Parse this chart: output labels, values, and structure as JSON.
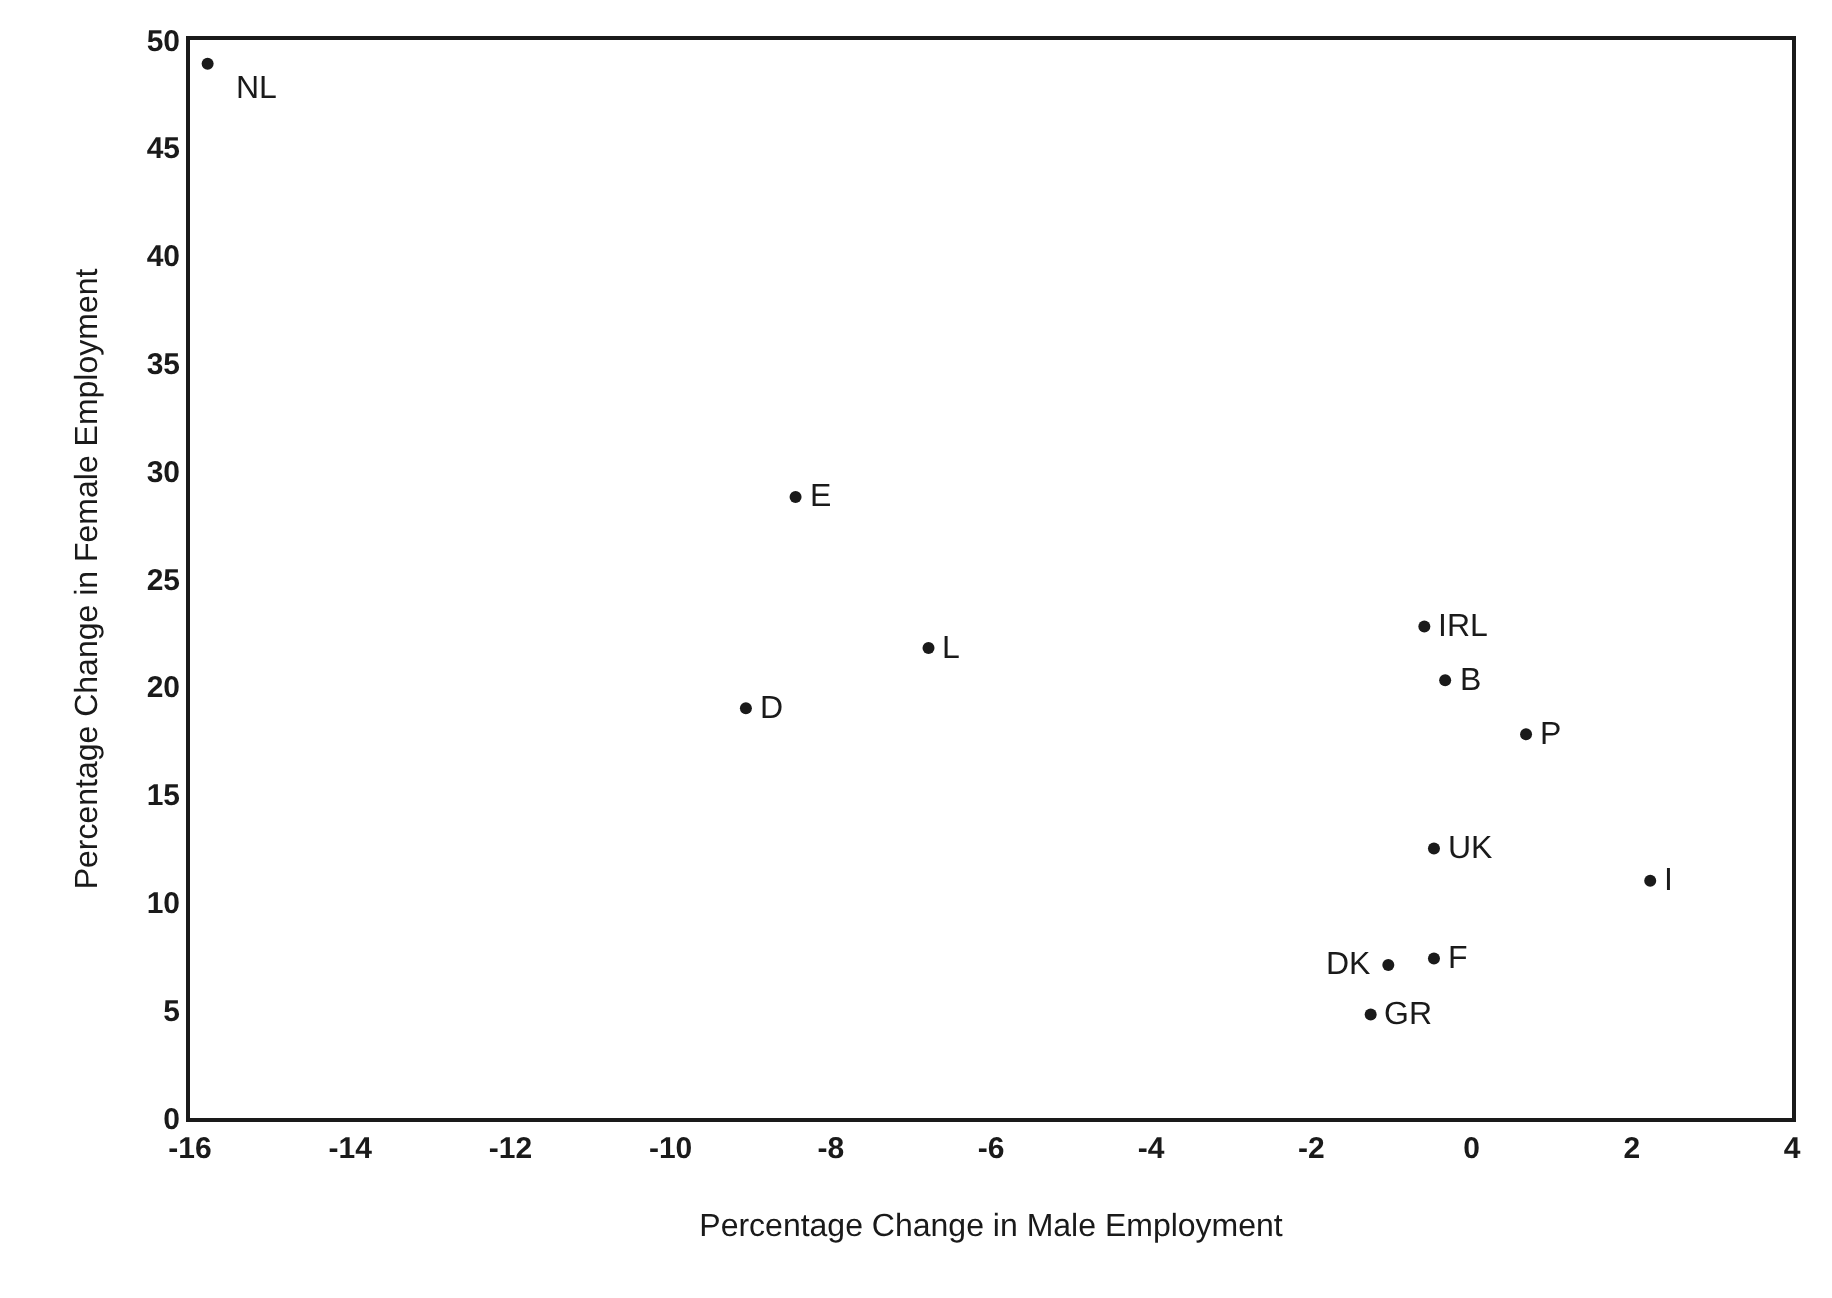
{
  "chart_data": {
    "type": "scatter",
    "xlabel": "Percentage Change in Male Employment",
    "ylabel": "Percentage Change in Female Employment",
    "x": [
      -15.78,
      -8.44,
      -6.78,
      -9.06,
      -0.59,
      -0.33,
      0.68,
      -0.47,
      2.23,
      -1.04,
      -0.47,
      -1.26
    ],
    "series": [
      {
        "color": "#1a1a1a",
        "values": [
          48.9,
          28.8,
          21.8,
          19.0,
          22.8,
          20.3,
          17.8,
          12.5,
          11.0,
          7.1,
          7.4,
          4.8
        ]
      }
    ],
    "annotations": [
      {
        "text": "NL",
        "x": -15.78,
        "y": 48.9
      },
      {
        "text": "E",
        "x": -8.44,
        "y": 28.8
      },
      {
        "text": "L",
        "x": -6.78,
        "y": 21.8
      },
      {
        "text": "D",
        "x": -9.06,
        "y": 19.0
      },
      {
        "text": "IRL",
        "x": -0.59,
        "y": 22.8
      },
      {
        "text": "B",
        "x": -0.33,
        "y": 20.3
      },
      {
        "text": "P",
        "x": 0.68,
        "y": 17.8
      },
      {
        "text": "UK",
        "x": -0.47,
        "y": 12.5
      },
      {
        "text": "I",
        "x": 2.23,
        "y": 11.0
      },
      {
        "text": "DK",
        "x": -1.04,
        "y": 7.1
      },
      {
        "text": "F",
        "x": -0.47,
        "y": 7.4
      },
      {
        "text": "GR",
        "x": -1.26,
        "y": 4.8
      }
    ],
    "xlim": [
      -16,
      4
    ],
    "xticks": [
      -16,
      -14,
      -12,
      -10,
      -8,
      -6,
      -4,
      -2,
      0,
      2,
      4
    ],
    "ylim": [
      0,
      50
    ],
    "yticks": [
      0,
      5,
      10,
      15,
      20,
      25,
      30,
      35,
      40,
      45,
      50
    ],
    "marker": "circle"
  }
}
